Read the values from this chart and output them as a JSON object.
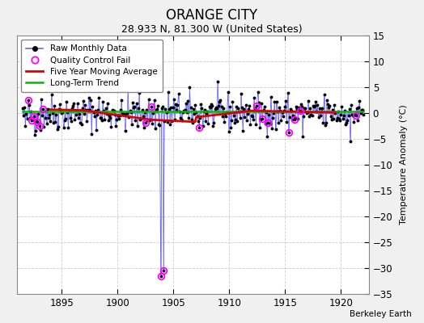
{
  "title": "ORANGE CITY",
  "subtitle": "28.933 N, 81.300 W (United States)",
  "ylabel": "Temperature Anomaly (°C)",
  "credit": "Berkeley Earth",
  "xlim": [
    1891.0,
    1922.5
  ],
  "ylim": [
    -35,
    15
  ],
  "yticks": [
    -35,
    -30,
    -25,
    -20,
    -15,
    -10,
    -5,
    0,
    5,
    10,
    15
  ],
  "xticks": [
    1895,
    1900,
    1905,
    1910,
    1915,
    1920
  ],
  "bg_color": "#f0f0f0",
  "plot_bg_color": "#ffffff",
  "raw_color": "#6666ff",
  "stem_color": "#8888ff",
  "ma_color": "#dd0000",
  "trend_color": "#00bb00",
  "qc_color": "magenta",
  "title_fontsize": 12,
  "subtitle_fontsize": 9,
  "seed": 42
}
